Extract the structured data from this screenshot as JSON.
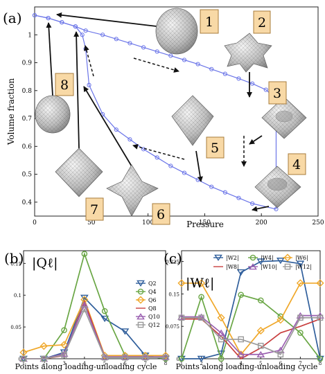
{
  "panels": {
    "a": {
      "label": "(a)"
    },
    "b": {
      "label": "(b)",
      "symbol": "|Qℓ|"
    },
    "c": {
      "label": "(c)",
      "symbol": "|Wℓ|"
    }
  },
  "shape_labels": [
    "1",
    "2",
    "3",
    "4",
    "5",
    "6",
    "7",
    "8"
  ],
  "colors": {
    "main_line": "#6a74e8",
    "label_box_fill": "#f8d9a6",
    "label_box_stroke": "#a77c3c",
    "Q2": "#2f5e9b",
    "Q4": "#69a644",
    "Q6": "#f0a82a",
    "Q8": "#c94040",
    "Q10": "#9a5fb0",
    "Q12": "#9a9a9a",
    "W2": "#2f5e9b",
    "W4": "#69a644",
    "W6": "#f0a82a",
    "W8": "#c94040",
    "W10": "#9a5fb0",
    "W12": "#9a9a9a"
  },
  "chart_data": [
    {
      "id": "a",
      "type": "line",
      "xlabel": "Pressure",
      "ylabel": "Volume fraction",
      "xlim": [
        0,
        250
      ],
      "ylim": [
        0.35,
        1.1
      ],
      "xticks": [
        "0",
        "50",
        "100",
        "150",
        "200",
        "250"
      ],
      "yticks": [
        "0.4",
        "0.5",
        "0.6",
        "0.7",
        "0.8",
        "0.9",
        "1"
      ],
      "loading": {
        "x": [
          0,
          12,
          24,
          36,
          45,
          60,
          72,
          84,
          96,
          108,
          120,
          132,
          144,
          156,
          168,
          180,
          192,
          204,
          213
        ],
        "y": [
          1.07,
          1.06,
          1.045,
          1.03,
          1.015,
          1.0,
          0.985,
          0.97,
          0.955,
          0.94,
          0.925,
          0.91,
          0.895,
          0.877,
          0.86,
          0.843,
          0.825,
          0.803,
          0.77
        ]
      },
      "snap": {
        "x": [
          213,
          213
        ],
        "y": [
          0.77,
          0.375
        ]
      },
      "unloading": {
        "x": [
          213,
          192,
          180,
          168,
          156,
          144,
          132,
          120,
          108,
          96,
          84,
          72,
          60,
          48,
          45,
          42,
          36,
          24,
          12,
          0
        ],
        "y": [
          0.375,
          0.395,
          0.415,
          0.435,
          0.455,
          0.48,
          0.505,
          0.53,
          0.56,
          0.59,
          0.625,
          0.66,
          0.715,
          0.82,
          0.95,
          1.0,
          1.03,
          1.045,
          1.06,
          1.07
        ]
      },
      "grid": false,
      "legend": "none"
    },
    {
      "id": "b",
      "type": "line",
      "xlabel": "Points along loading-unloading cycle",
      "ylabel": "",
      "xlim": [
        1,
        8
      ],
      "ylim": [
        0,
        0.17
      ],
      "xticks": [
        "1",
        "2",
        "3",
        "4",
        "5",
        "6",
        "7",
        "8"
      ],
      "yticks": [
        "0",
        "0.05",
        "0.1",
        "0.15"
      ],
      "x": [
        1,
        2,
        3,
        4,
        5,
        6,
        7,
        8
      ],
      "legend": "top-right",
      "series": [
        {
          "name": "Q2",
          "marker": "tri-down",
          "values": [
            0,
            0,
            0.01,
            0.096,
            0.063,
            0.043,
            0.005,
            0
          ]
        },
        {
          "name": "Q4",
          "marker": "circle",
          "values": [
            0,
            0,
            0.045,
            0.165,
            0.075,
            0.005,
            0.005,
            0
          ]
        },
        {
          "name": "Q6",
          "marker": "diamond",
          "values": [
            0.01,
            0.02,
            0.022,
            0.093,
            0.005,
            0.005,
            0.005,
            0.005
          ]
        },
        {
          "name": "Q8",
          "marker": "none",
          "values": [
            0,
            0,
            0.005,
            0.09,
            0.003,
            0.003,
            0.003,
            0.003
          ]
        },
        {
          "name": "Q10",
          "marker": "tri-up",
          "values": [
            0,
            0,
            0.008,
            0.085,
            0.003,
            0.003,
            0.003,
            0.003
          ]
        },
        {
          "name": "Q12",
          "marker": "square",
          "values": [
            0,
            0,
            0.006,
            0.078,
            0.002,
            0.002,
            0.002,
            0.002
          ]
        }
      ]
    },
    {
      "id": "c",
      "type": "line",
      "xlabel": "Points along loading-unloading cycle",
      "ylabel": "",
      "xlim": [
        1,
        8
      ],
      "ylim": [
        0,
        0.25
      ],
      "xticks": [
        "1",
        "2",
        "3",
        "4",
        "5",
        "6",
        "7",
        "8"
      ],
      "yticks": [
        "0",
        "0.075",
        "0.15",
        "0.225"
      ],
      "x": [
        1,
        2,
        3,
        4,
        5,
        6,
        7,
        8
      ],
      "legend": "top",
      "series": [
        {
          "name": "|W2|",
          "marker": "tri-down",
          "values": [
            0,
            0,
            0.012,
            0.2,
            0.225,
            0.227,
            0.22,
            0
          ]
        },
        {
          "name": "|W4|",
          "marker": "circle",
          "values": [
            0,
            0.143,
            0,
            0.148,
            0.135,
            0.098,
            0.06,
            0
          ]
        },
        {
          "name": "|W6|",
          "marker": "diamond",
          "values": [
            0.175,
            0.175,
            0.095,
            0.01,
            0.065,
            0.09,
            0.175,
            0.175
          ]
        },
        {
          "name": "|W8|",
          "marker": "none",
          "values": [
            0.092,
            0.092,
            0.052,
            0,
            0.025,
            0.06,
            0.075,
            0.092
          ]
        },
        {
          "name": "|W10|",
          "marker": "tri-up",
          "values": [
            0.097,
            0.097,
            0.06,
            0.01,
            0.01,
            0.02,
            0.1,
            0.1
          ]
        },
        {
          "name": "|W12|",
          "marker": "square",
          "values": [
            0.095,
            0.095,
            0.045,
            0.045,
            0.03,
            0.01,
            0.095,
            0.095
          ]
        }
      ]
    }
  ]
}
